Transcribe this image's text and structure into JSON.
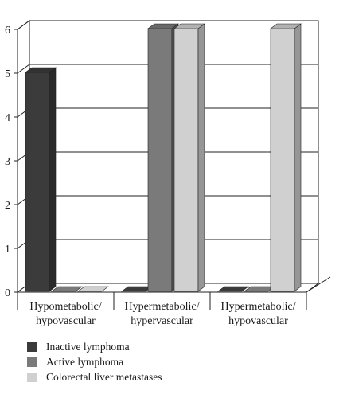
{
  "chart_data": {
    "type": "bar",
    "categories": [
      "Hypometabolic/\nhypovascular",
      "Hypermetabolic/\nhypervascular",
      "Hypermetabolic/\nhypovascular"
    ],
    "series": [
      {
        "name": "Inactive lymphoma",
        "values": [
          5,
          0,
          0
        ],
        "color": "#3b3b3b"
      },
      {
        "name": "Active lymphoma",
        "values": [
          0,
          6,
          0
        ],
        "color": "#7a7a7a"
      },
      {
        "name": "Colorectal liver metastases",
        "values": [
          0,
          6,
          6
        ],
        "color": "#d0d0d0"
      }
    ],
    "yticks": [
      "0",
      "1",
      "2",
      "3",
      "4",
      "5",
      "6"
    ],
    "ylim": [
      0,
      6
    ],
    "grid": true,
    "legend_position": "bottom-left",
    "three_d": true
  }
}
